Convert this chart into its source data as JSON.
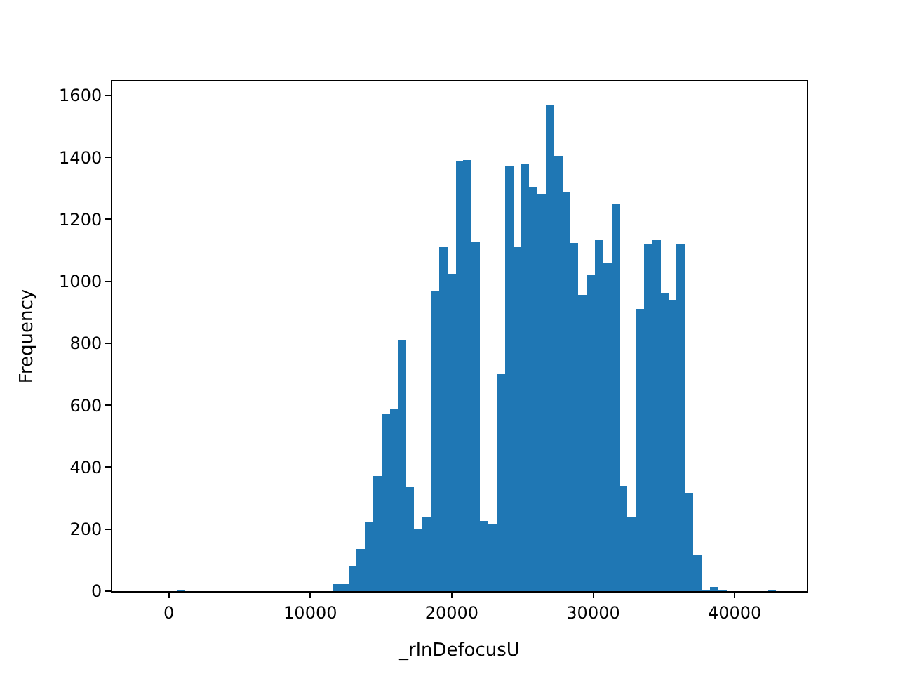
{
  "chart_data": {
    "type": "histogram",
    "xlabel": "_rlnDefocusU",
    "ylabel": "Frequency",
    "color": "#1f77b4",
    "bins": [
      540,
      1120,
      1700,
      2280,
      2860,
      3440,
      4020,
      4600,
      5180,
      5760,
      6340,
      6920,
      7500,
      8080,
      8660,
      9240,
      9820,
      10400,
      10980,
      11560,
      12140,
      12720,
      13300,
      13880,
      14460,
      15040,
      15620,
      16200,
      16780,
      17360,
      17940,
      18520,
      19100,
      19680,
      20260,
      20840,
      21420,
      22000,
      22580,
      23160,
      23740,
      24320,
      24900,
      25480,
      26060,
      26640,
      27220,
      27800,
      28380,
      28960,
      29540,
      30120,
      30700,
      31280,
      31860,
      32440,
      33020,
      33600,
      34180,
      34760,
      35340,
      35920,
      36500,
      37080,
      37660,
      38240,
      38820,
      39400,
      39980,
      40560,
      41140,
      41720,
      42300,
      42880
    ],
    "values": [
      4,
      0,
      0,
      0,
      0,
      0,
      0,
      0,
      0,
      0,
      0,
      0,
      0,
      0,
      0,
      0,
      0,
      0,
      0,
      22,
      22,
      80,
      134,
      223,
      370,
      570,
      588,
      811,
      334,
      200,
      240,
      971,
      1110,
      1025,
      1386,
      1390,
      1127,
      227,
      218,
      704,
      1372,
      1110,
      1377,
      1306,
      1283,
      1568,
      1404,
      1288,
      1123,
      958,
      1020,
      1132,
      1061,
      1252,
      339,
      240,
      909,
      1118,
      1132,
      962,
      940,
      1118,
      316,
      116,
      4,
      13,
      4,
      0,
      0,
      0,
      0,
      0,
      4
    ],
    "xlim": [
      -4000,
      45100
    ],
    "ylim": [
      0,
      1645
    ],
    "xticks": [
      0,
      10000,
      20000,
      30000,
      40000
    ],
    "yticks": [
      0,
      200,
      400,
      600,
      800,
      1000,
      1200,
      1400,
      1600
    ]
  }
}
